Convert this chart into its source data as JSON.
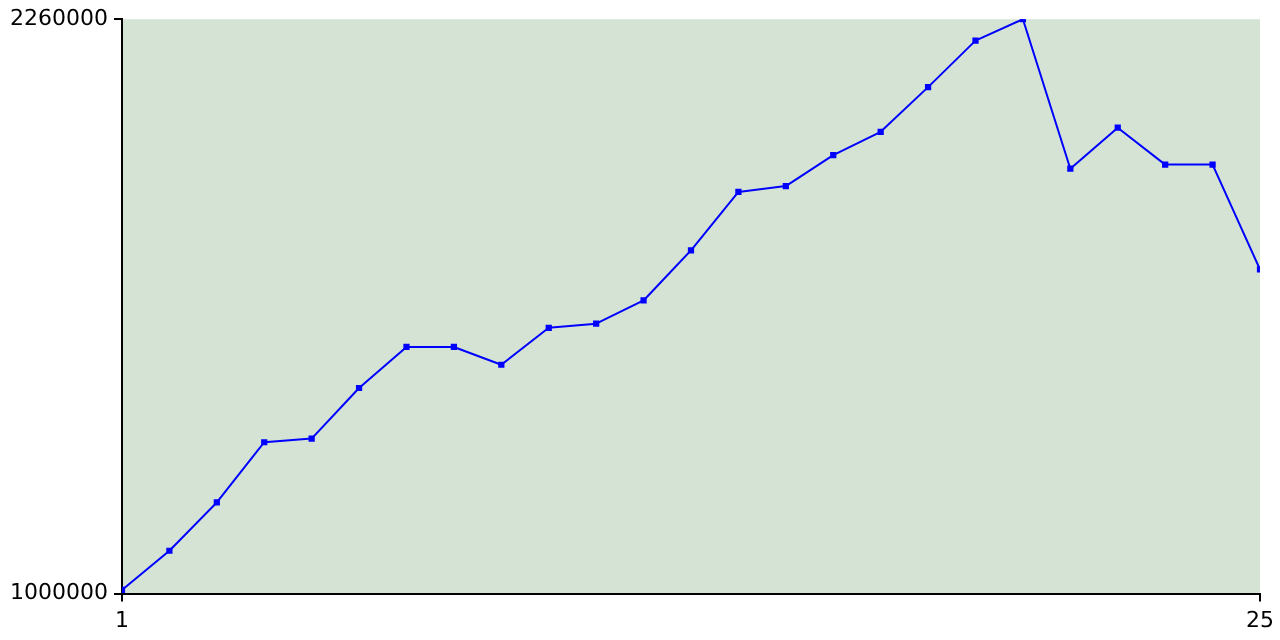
{
  "chart_data": {
    "type": "line",
    "x": [
      1,
      2,
      3,
      4,
      5,
      6,
      7,
      8,
      9,
      10,
      11,
      12,
      13,
      14,
      15,
      16,
      17,
      18,
      19,
      20,
      21,
      22,
      23,
      24,
      25
    ],
    "series": [
      {
        "color": "#0000ff",
        "values": [
          1008000,
          1094000,
          1200000,
          1332000,
          1340000,
          1451000,
          1541000,
          1541000,
          1502000,
          1583000,
          1592000,
          1643000,
          1753000,
          1881000,
          1894000,
          1962000,
          2013000,
          2111000,
          2213000,
          2260000,
          1932000,
          2022000,
          1941000,
          1941000,
          1711000
        ]
      }
    ],
    "xlim": [
      1,
      25
    ],
    "xticks": [
      1,
      25
    ],
    "ylim": [
      1000000,
      2260000
    ],
    "yticks": [
      1000000,
      2260000
    ],
    "grid": false,
    "legend": false,
    "marker": "square",
    "line_style": "solid"
  }
}
